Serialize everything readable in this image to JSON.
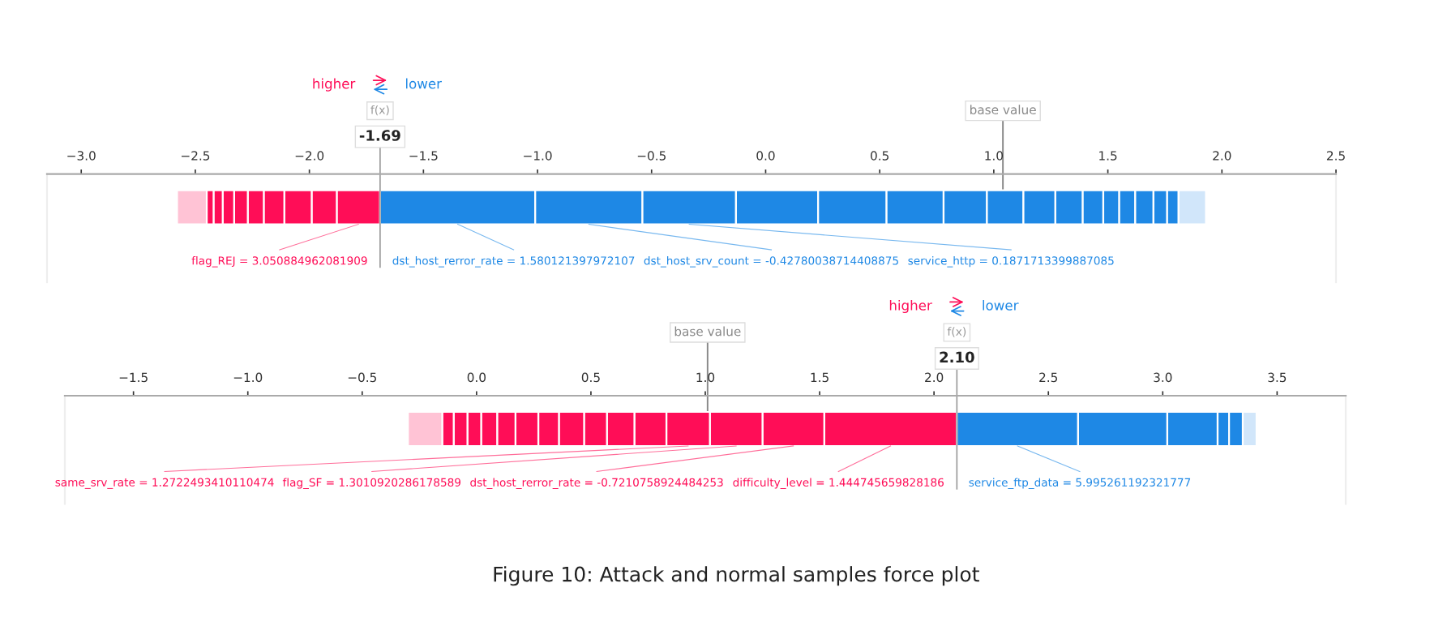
{
  "chart_data": [
    {
      "type": "bar",
      "orientation": "horizontal",
      "categories": [
        null
      ],
      "grid": false,
      "xlim": [
        -3.15,
        2.5
      ],
      "xticks": [
        {
          "value": -3.0,
          "label": "−3.0"
        },
        {
          "value": -2.5,
          "label": "−2.5"
        },
        {
          "value": -2.0,
          "label": "−2.0"
        },
        {
          "value": -1.5,
          "label": "−1.5"
        },
        {
          "value": -1.0,
          "label": "−1.0"
        },
        {
          "value": -0.5,
          "label": "−0.5"
        },
        {
          "value": 0,
          "label": "0.0"
        },
        {
          "value": 0.5,
          "label": "0.5"
        },
        {
          "value": 1.0,
          "label": "1.0"
        },
        {
          "value": 1.5,
          "label": "1.5"
        },
        {
          "value": 2.0,
          "label": "2.0"
        },
        {
          "value": 2.5,
          "label": "2.5"
        }
      ],
      "series": [
        {
          "name": "flag_REJ = 3.050884962081909",
          "color": "#ff0d57",
          "values": [
            0.19
          ],
          "base": [
            -1.88
          ]
        },
        {
          "color": "#ff0d57",
          "values": [
            0.11
          ],
          "base": [
            -1.99
          ]
        },
        {
          "color": "#ff0d57",
          "values": [
            0.12
          ],
          "base": [
            -2.11
          ]
        },
        {
          "color": "#ff0d57",
          "values": [
            0.09
          ],
          "base": [
            -2.2
          ]
        },
        {
          "color": "#ff0d57",
          "values": [
            0.07
          ],
          "base": [
            -2.27
          ]
        },
        {
          "color": "#ff0d57",
          "values": [
            0.06
          ],
          "base": [
            -2.33
          ]
        },
        {
          "color": "#ff0d57",
          "values": [
            0.05
          ],
          "base": [
            -2.38
          ]
        },
        {
          "color": "#ff0d57",
          "values": [
            0.04
          ],
          "base": [
            -2.42
          ]
        },
        {
          "color": "#ff0d57",
          "values": [
            0.03
          ],
          "base": [
            -2.45
          ]
        },
        {
          "color": "#ffc3d5",
          "values": [
            0.13
          ],
          "base": [
            -2.58
          ]
        },
        {
          "name": "dst_host_rerror_rate = 1.580121397972107",
          "color": "#1e88e5",
          "values": [
            0.68
          ],
          "base": [
            -1.69
          ]
        },
        {
          "name": "dst_host_srv_count = -0.42780038714408875",
          "color": "#1e88e5",
          "values": [
            0.47
          ],
          "base": [
            -1.01
          ]
        },
        {
          "name": "service_http = 0.1871713399887085",
          "color": "#1e88e5",
          "values": [
            0.41
          ],
          "base": [
            -0.54
          ]
        },
        {
          "color": "#1e88e5",
          "values": [
            0.36
          ],
          "base": [
            -0.13
          ]
        },
        {
          "color": "#1e88e5",
          "values": [
            0.3
          ],
          "base": [
            0.23
          ]
        },
        {
          "color": "#1e88e5",
          "values": [
            0.25
          ],
          "base": [
            0.53
          ]
        },
        {
          "color": "#1e88e5",
          "values": [
            0.19
          ],
          "base": [
            0.78
          ]
        },
        {
          "color": "#1e88e5",
          "values": [
            0.16
          ],
          "base": [
            0.97
          ]
        },
        {
          "color": "#1e88e5",
          "values": [
            0.14
          ],
          "base": [
            1.13
          ]
        },
        {
          "color": "#1e88e5",
          "values": [
            0.12
          ],
          "base": [
            1.27
          ]
        },
        {
          "color": "#1e88e5",
          "values": [
            0.09
          ],
          "base": [
            1.39
          ]
        },
        {
          "color": "#1e88e5",
          "values": [
            0.07
          ],
          "base": [
            1.48
          ]
        },
        {
          "color": "#1e88e5",
          "values": [
            0.07
          ],
          "base": [
            1.55
          ]
        },
        {
          "color": "#1e88e5",
          "values": [
            0.08
          ],
          "base": [
            1.62
          ]
        },
        {
          "color": "#1e88e5",
          "values": [
            0.06
          ],
          "base": [
            1.7
          ]
        },
        {
          "color": "#1e88e5",
          "values": [
            0.05
          ],
          "base": [
            1.76
          ]
        },
        {
          "color": "#d1e6fa",
          "values": [
            0.12
          ],
          "base": [
            1.81
          ]
        }
      ],
      "ref_lines": [
        {
          "axis": "x",
          "value": -1.69,
          "label": "-1.69"
        },
        {
          "axis": "x",
          "value": 1.04,
          "label": "base value"
        }
      ],
      "annotations": [
        "f(x)",
        "higher",
        "lower"
      ]
    },
    {
      "type": "bar",
      "orientation": "horizontal",
      "categories": [
        null
      ],
      "grid": false,
      "xlim": [
        -1.8,
        3.8
      ],
      "xticks": [
        {
          "value": -1.5,
          "label": "−1.5"
        },
        {
          "value": -1.0,
          "label": "−1.0"
        },
        {
          "value": -0.5,
          "label": "−0.5"
        },
        {
          "value": 0,
          "label": "0.0"
        },
        {
          "value": 0.5,
          "label": "0.5"
        },
        {
          "value": 1.0,
          "label": "1.0"
        },
        {
          "value": 1.5,
          "label": "1.5"
        },
        {
          "value": 2.0,
          "label": "2.0"
        },
        {
          "value": 2.5,
          "label": "2.5"
        },
        {
          "value": 3.0,
          "label": "3.0"
        },
        {
          "value": 3.5,
          "label": "3.5"
        }
      ],
      "series": [
        {
          "name": "difficulty_level = 1.444745659828186",
          "color": "#ff0d57",
          "values": [
            0.58
          ],
          "base": [
            1.52
          ]
        },
        {
          "name": "dst_host_rerror_rate = -0.7210758924484253",
          "color": "#ff0d57",
          "values": [
            0.27
          ],
          "base": [
            1.25
          ]
        },
        {
          "name": "flag_SF = 1.3010920286178589",
          "color": "#ff0d57",
          "values": [
            0.23
          ],
          "base": [
            1.02
          ]
        },
        {
          "name": "same_srv_rate = 1.2722493410110474",
          "color": "#ff0d57",
          "values": [
            0.19
          ],
          "base": [
            0.83
          ]
        },
        {
          "color": "#ff0d57",
          "values": [
            0.14
          ],
          "base": [
            0.69
          ]
        },
        {
          "color": "#ff0d57",
          "values": [
            0.12
          ],
          "base": [
            0.57
          ]
        },
        {
          "color": "#ff0d57",
          "values": [
            0.1
          ],
          "base": [
            0.47
          ]
        },
        {
          "color": "#ff0d57",
          "values": [
            0.11
          ],
          "base": [
            0.36
          ]
        },
        {
          "color": "#ff0d57",
          "values": [
            0.09
          ],
          "base": [
            0.27
          ]
        },
        {
          "color": "#ff0d57",
          "values": [
            0.1
          ],
          "base": [
            0.17
          ]
        },
        {
          "color": "#ff0d57",
          "values": [
            0.08
          ],
          "base": [
            0.09
          ]
        },
        {
          "color": "#ff0d57",
          "values": [
            0.07
          ],
          "base": [
            0.02
          ]
        },
        {
          "color": "#ff0d57",
          "values": [
            0.06
          ],
          "base": [
            -0.04
          ]
        },
        {
          "color": "#ff0d57",
          "values": [
            0.06
          ],
          "base": [
            -0.1
          ]
        },
        {
          "color": "#ff0d57",
          "values": [
            0.05
          ],
          "base": [
            -0.15
          ]
        },
        {
          "color": "#ffc3d5",
          "values": [
            0.15
          ],
          "base": [
            -0.3
          ]
        },
        {
          "name": "service_ftp_data = 5.995261192321777",
          "color": "#1e88e5",
          "values": [
            0.53
          ],
          "base": [
            2.1
          ]
        },
        {
          "color": "#1e88e5",
          "values": [
            0.39
          ],
          "base": [
            2.63
          ]
        },
        {
          "color": "#1e88e5",
          "values": [
            0.22
          ],
          "base": [
            3.02
          ]
        },
        {
          "color": "#1e88e5",
          "values": [
            0.05
          ],
          "base": [
            3.24
          ]
        },
        {
          "color": "#1e88e5",
          "values": [
            0.06
          ],
          "base": [
            3.29
          ]
        },
        {
          "color": "#d1e6fa",
          "values": [
            0.06
          ],
          "base": [
            3.35
          ]
        }
      ],
      "ref_lines": [
        {
          "axis": "x",
          "value": 2.1,
          "label": "2.10"
        },
        {
          "axis": "x",
          "value": 1.01,
          "label": "base value"
        }
      ],
      "annotations": [
        "f(x)",
        "higher",
        "lower",
        "Figure 10: Attack and normal samples force plot"
      ]
    }
  ]
}
